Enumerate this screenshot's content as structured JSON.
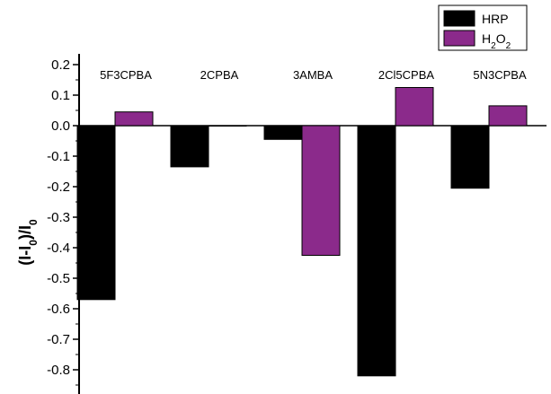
{
  "chart_data": {
    "type": "bar",
    "categories": [
      "5F3CPBA",
      "2CPBA",
      "3AMBA",
      "2Cl5CPBA",
      "5N3CPBA"
    ],
    "series": [
      {
        "name": "HRP",
        "color": "#000000",
        "values": [
          -0.57,
          -0.135,
          -0.045,
          -0.82,
          -0.205
        ]
      },
      {
        "name": "H2O2",
        "color": "#8B2A8B",
        "values": [
          0.045,
          0.0,
          -0.425,
          0.125,
          0.065
        ]
      }
    ],
    "ylim": [
      -0.85,
      0.22
    ],
    "yticks": [
      0.2,
      0.1,
      0.0,
      -0.1,
      -0.2,
      -0.3,
      -0.4,
      -0.5,
      -0.6,
      -0.7,
      -0.8
    ],
    "ytick_labels": [
      "0.2",
      "0.1",
      "0.0",
      "-0.1",
      "-0.2",
      "-0.3",
      "-0.4",
      "-0.5",
      "-0.6",
      "-0.7",
      "-0.8"
    ],
    "ylabel": "(I-I0)/I0",
    "grid": false,
    "legend_position": "top-right"
  }
}
